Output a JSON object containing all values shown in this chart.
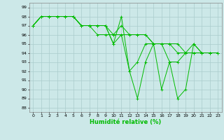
{
  "xlabel": "Humidité relative (%)",
  "background_color": "#cce8e8",
  "grid_color": "#aacccc",
  "line_color": "#00bb00",
  "xlim": [
    -0.5,
    23.5
  ],
  "ylim": [
    87.5,
    99.5
  ],
  "yticks": [
    88,
    89,
    90,
    91,
    92,
    93,
    94,
    95,
    96,
    97,
    98,
    99
  ],
  "xticks": [
    0,
    1,
    2,
    3,
    4,
    5,
    6,
    7,
    8,
    9,
    10,
    11,
    12,
    13,
    14,
    15,
    16,
    17,
    18,
    19,
    20,
    21,
    22,
    23
  ],
  "series": [
    [
      97,
      98,
      98,
      98,
      98,
      98,
      97,
      97,
      97,
      97,
      95,
      98,
      92,
      89,
      93,
      95,
      95,
      93,
      93,
      94,
      95,
      94,
      94,
      94
    ],
    [
      97,
      98,
      98,
      98,
      98,
      98,
      97,
      97,
      97,
      97,
      96,
      96,
      96,
      96,
      96,
      95,
      95,
      95,
      95,
      94,
      94,
      94,
      94,
      94
    ],
    [
      97,
      98,
      98,
      98,
      98,
      98,
      97,
      97,
      97,
      97,
      95,
      96,
      92,
      93,
      95,
      95,
      90,
      93,
      89,
      90,
      95,
      94,
      94,
      94
    ],
    [
      97,
      98,
      98,
      98,
      98,
      98,
      97,
      97,
      96,
      96,
      96,
      97,
      96,
      96,
      96,
      95,
      95,
      95,
      94,
      94,
      94,
      94,
      94,
      94
    ]
  ]
}
